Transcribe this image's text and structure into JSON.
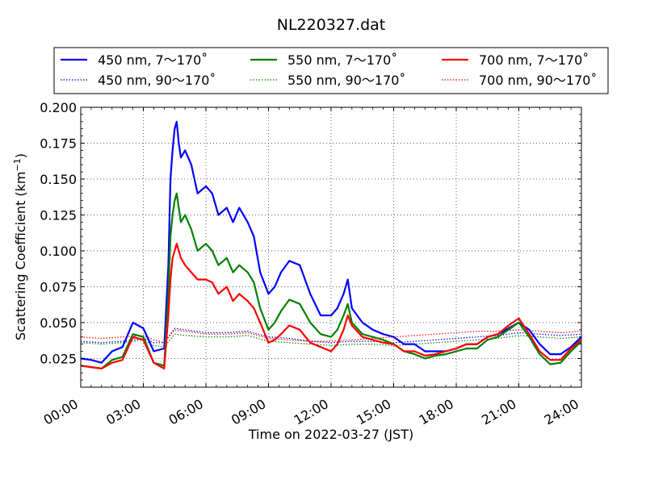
{
  "chart_data": {
    "type": "line",
    "title": "NL220327.dat",
    "xlabel": "Time on 2022-03-27 (JST)",
    "ylabel": "Scattering Coefficient (km",
    "ylabel_sup": "−1",
    "ylabel_close": ")",
    "xlim": [
      0,
      24
    ],
    "ylim": [
      0.005,
      0.2
    ],
    "x_ticks": [
      0,
      3,
      6,
      9,
      12,
      15,
      18,
      21,
      24
    ],
    "x_tick_labels": [
      "00:00",
      "03:00",
      "06:00",
      "09:00",
      "12:00",
      "15:00",
      "18:00",
      "21:00",
      "24:00"
    ],
    "y_ticks": [
      0.025,
      0.05,
      0.075,
      0.1,
      0.125,
      0.15,
      0.175,
      0.2
    ],
    "y_tick_labels": [
      "0.025",
      "0.050",
      "0.075",
      "0.100",
      "0.125",
      "0.150",
      "0.175",
      "0.200"
    ],
    "grid": true,
    "legend_placement": "above plot, 3 columns",
    "series": [
      {
        "name": "450 nm, 7～170˚",
        "color": "#0000ff",
        "style": "solid",
        "x": [
          0,
          0.5,
          1,
          1.5,
          2,
          2.5,
          3,
          3.5,
          4,
          4.2,
          4.3,
          4.4,
          4.5,
          4.6,
          4.7,
          4.8,
          5,
          5.3,
          5.6,
          6,
          6.3,
          6.6,
          7,
          7.3,
          7.6,
          8,
          8.3,
          8.6,
          9,
          9.3,
          9.6,
          10,
          10.5,
          11,
          11.5,
          12,
          12.3,
          12.6,
          12.8,
          13,
          13.5,
          14,
          14.5,
          15,
          15.5,
          16,
          16.5,
          17,
          17.5,
          18,
          18.5,
          19,
          19.5,
          20,
          20.5,
          21,
          21.5,
          22,
          22.5,
          23,
          23.5,
          24
        ],
        "y": [
          0.025,
          0.024,
          0.022,
          0.03,
          0.033,
          0.05,
          0.046,
          0.03,
          0.032,
          0.09,
          0.15,
          0.17,
          0.185,
          0.19,
          0.175,
          0.165,
          0.17,
          0.16,
          0.14,
          0.145,
          0.14,
          0.125,
          0.13,
          0.12,
          0.13,
          0.12,
          0.11,
          0.085,
          0.07,
          0.075,
          0.085,
          0.093,
          0.09,
          0.07,
          0.055,
          0.055,
          0.06,
          0.07,
          0.08,
          0.06,
          0.05,
          0.045,
          0.042,
          0.04,
          0.035,
          0.035,
          0.03,
          0.03,
          0.03,
          0.032,
          0.035,
          0.035,
          0.04,
          0.042,
          0.046,
          0.05,
          0.045,
          0.035,
          0.028,
          0.028,
          0.033,
          0.04
        ]
      },
      {
        "name": "450 nm, 90～170˚",
        "color": "#0000ff",
        "style": "dotted",
        "x": [
          0,
          1,
          2,
          3,
          3.5,
          4,
          4.5,
          5,
          6,
          7,
          8,
          9,
          10,
          11,
          12,
          13,
          14,
          15,
          16,
          17,
          18,
          19,
          20,
          21,
          22,
          23,
          24
        ],
        "y": [
          0.037,
          0.036,
          0.037,
          0.039,
          0.036,
          0.036,
          0.046,
          0.045,
          0.043,
          0.043,
          0.044,
          0.04,
          0.039,
          0.037,
          0.036,
          0.037,
          0.037,
          0.036,
          0.037,
          0.038,
          0.039,
          0.04,
          0.041,
          0.043,
          0.042,
          0.041,
          0.042
        ]
      },
      {
        "name": "550 nm, 7～170˚",
        "color": "#008000",
        "style": "solid",
        "x": [
          0,
          0.5,
          1,
          1.5,
          2,
          2.5,
          3,
          3.5,
          4,
          4.2,
          4.3,
          4.4,
          4.5,
          4.6,
          4.7,
          4.8,
          5,
          5.3,
          5.6,
          6,
          6.3,
          6.6,
          7,
          7.3,
          7.6,
          8,
          8.3,
          8.6,
          9,
          9.3,
          9.6,
          10,
          10.5,
          11,
          11.5,
          12,
          12.3,
          12.6,
          12.8,
          13,
          13.5,
          14,
          14.5,
          15,
          15.5,
          16,
          16.5,
          17,
          17.5,
          18,
          18.5,
          19,
          19.5,
          20,
          20.5,
          21,
          21.5,
          22,
          22.5,
          23,
          23.5,
          24
        ],
        "y": [
          0.02,
          0.019,
          0.018,
          0.024,
          0.026,
          0.042,
          0.04,
          0.022,
          0.02,
          0.07,
          0.11,
          0.125,
          0.135,
          0.14,
          0.13,
          0.12,
          0.125,
          0.115,
          0.1,
          0.105,
          0.1,
          0.09,
          0.095,
          0.085,
          0.09,
          0.085,
          0.078,
          0.06,
          0.045,
          0.05,
          0.058,
          0.066,
          0.063,
          0.05,
          0.042,
          0.04,
          0.045,
          0.055,
          0.063,
          0.05,
          0.042,
          0.04,
          0.038,
          0.035,
          0.03,
          0.028,
          0.025,
          0.027,
          0.028,
          0.03,
          0.032,
          0.032,
          0.038,
          0.04,
          0.045,
          0.05,
          0.04,
          0.028,
          0.021,
          0.022,
          0.03,
          0.037
        ]
      },
      {
        "name": "550 nm, 90～170˚",
        "color": "#008000",
        "style": "dotted",
        "x": [
          0,
          1,
          2,
          3,
          3.5,
          4,
          4.5,
          5,
          6,
          7,
          8,
          9,
          10,
          11,
          12,
          13,
          14,
          15,
          16,
          17,
          18,
          19,
          20,
          21,
          22,
          23,
          24
        ],
        "y": [
          0.036,
          0.035,
          0.036,
          0.038,
          0.034,
          0.033,
          0.042,
          0.041,
          0.04,
          0.04,
          0.041,
          0.037,
          0.036,
          0.035,
          0.034,
          0.035,
          0.035,
          0.034,
          0.035,
          0.036,
          0.037,
          0.038,
          0.039,
          0.041,
          0.04,
          0.039,
          0.04
        ]
      },
      {
        "name": "700 nm, 7～170˚",
        "color": "#ff0000",
        "style": "solid",
        "x": [
          0,
          0.5,
          1,
          1.5,
          2,
          2.5,
          3,
          3.5,
          4,
          4.2,
          4.3,
          4.4,
          4.5,
          4.6,
          4.7,
          4.8,
          5,
          5.3,
          5.6,
          6,
          6.3,
          6.6,
          7,
          7.3,
          7.6,
          8,
          8.3,
          8.6,
          9,
          9.3,
          9.6,
          10,
          10.5,
          11,
          11.5,
          12,
          12.3,
          12.6,
          12.8,
          13,
          13.5,
          14,
          14.5,
          15,
          15.5,
          16,
          16.5,
          17,
          17.5,
          18,
          18.5,
          19,
          19.5,
          20,
          20.5,
          21,
          21.5,
          22,
          22.5,
          23,
          23.5,
          24
        ],
        "y": [
          0.02,
          0.019,
          0.018,
          0.022,
          0.024,
          0.04,
          0.038,
          0.022,
          0.018,
          0.055,
          0.08,
          0.095,
          0.1,
          0.105,
          0.1,
          0.095,
          0.09,
          0.085,
          0.08,
          0.08,
          0.078,
          0.07,
          0.075,
          0.065,
          0.07,
          0.065,
          0.06,
          0.05,
          0.036,
          0.038,
          0.042,
          0.048,
          0.045,
          0.036,
          0.033,
          0.03,
          0.035,
          0.045,
          0.055,
          0.048,
          0.04,
          0.038,
          0.036,
          0.035,
          0.03,
          0.03,
          0.027,
          0.028,
          0.03,
          0.032,
          0.035,
          0.035,
          0.04,
          0.042,
          0.048,
          0.053,
          0.042,
          0.03,
          0.024,
          0.024,
          0.032,
          0.038
        ]
      },
      {
        "name": "700 nm, 90～170˚",
        "color": "#ff0000",
        "style": "dotted",
        "x": [
          0,
          1,
          2,
          3,
          3.5,
          4,
          4.5,
          5,
          6,
          7,
          8,
          9,
          10,
          11,
          12,
          13,
          14,
          15,
          16,
          17,
          18,
          19,
          20,
          21,
          22,
          23,
          24
        ],
        "y": [
          0.04,
          0.039,
          0.04,
          0.041,
          0.038,
          0.036,
          0.045,
          0.044,
          0.042,
          0.042,
          0.043,
          0.039,
          0.038,
          0.037,
          0.037,
          0.038,
          0.039,
          0.04,
          0.041,
          0.042,
          0.043,
          0.044,
          0.044,
          0.045,
          0.044,
          0.043,
          0.044
        ]
      }
    ]
  }
}
